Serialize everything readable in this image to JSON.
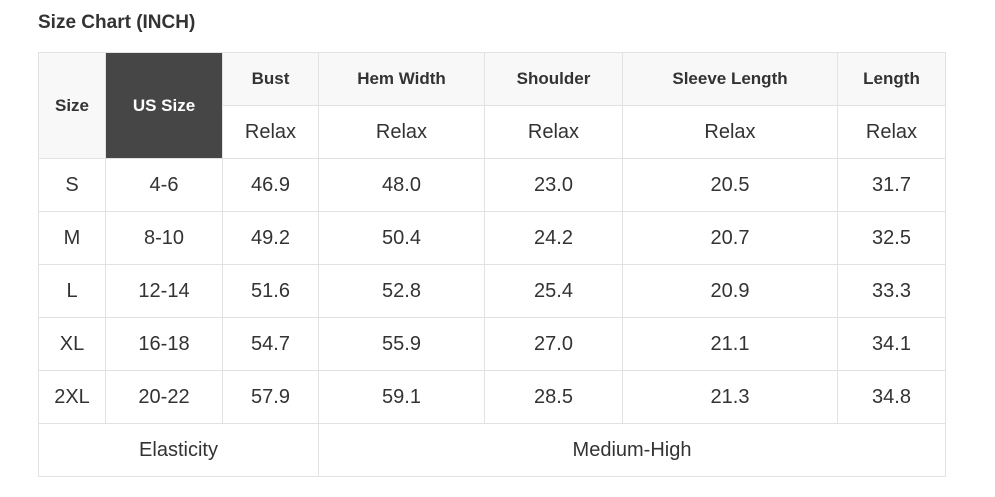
{
  "title": "Size Chart (INCH)",
  "headers": {
    "size": "Size",
    "us_size": "US Size",
    "columns": [
      "Bust",
      "Hem Width",
      "Shoulder",
      "Sleeve Length",
      "Length"
    ],
    "sub": [
      "Relax",
      "Relax",
      "Relax",
      "Relax",
      "Relax"
    ]
  },
  "rows": [
    [
      "S",
      "4-6",
      "46.9",
      "48.0",
      "23.0",
      "20.5",
      "31.7"
    ],
    [
      "M",
      "8-10",
      "49.2",
      "50.4",
      "24.2",
      "20.7",
      "32.5"
    ],
    [
      "L",
      "12-14",
      "51.6",
      "52.8",
      "25.4",
      "20.9",
      "33.3"
    ],
    [
      "XL",
      "16-18",
      "54.7",
      "55.9",
      "27.0",
      "21.1",
      "34.1"
    ],
    [
      "2XL",
      "20-22",
      "57.9",
      "59.1",
      "28.5",
      "21.3",
      "34.8"
    ]
  ],
  "footer": {
    "label": "Elasticity",
    "value": "Medium-High"
  },
  "colors": {
    "us_size_bg": "#464646",
    "header_bg": "#f8f8f8",
    "border": "#e2e2e2"
  }
}
